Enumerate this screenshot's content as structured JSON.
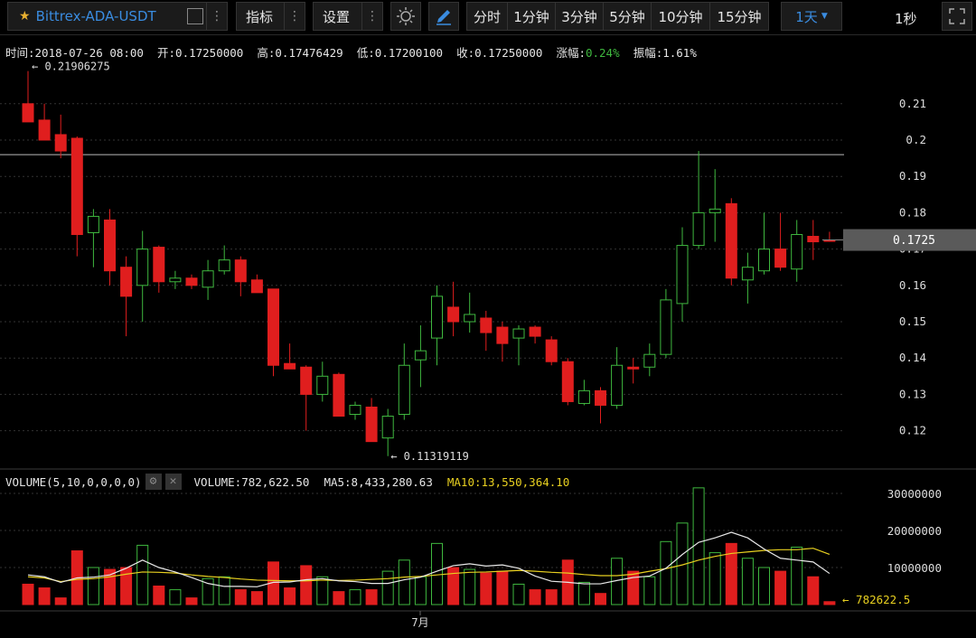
{
  "symbol": "Bittrex-ADA-USDT",
  "toolbar": {
    "indicators_label": "指标",
    "settings_label": "设置",
    "intervals": [
      "分时",
      "1分钟",
      "3分钟",
      "5分钟",
      "10分钟",
      "15分钟"
    ],
    "selected_interval": "1天",
    "refresh_label": "1秒"
  },
  "info": {
    "time_label": "时间:",
    "time": "2018-07-26 08:00",
    "open_label": "开:",
    "open": "0.17250000",
    "high_label": "高:",
    "high": "0.17476429",
    "low_label": "低:",
    "low": "0.17200100",
    "close_label": "收:",
    "close": "0.17250000",
    "change_label": "涨幅:",
    "change": "0.24%",
    "amplitude_label": "振幅:",
    "amplitude": "1.61%"
  },
  "volume_info": {
    "label": "VOLUME(5,10,0,0,0,0)",
    "volume": "VOLUME:782,622.50",
    "ma5": "MA5:8,433,280.63",
    "ma10": "MA10:13,550,364.10"
  },
  "colors": {
    "up": "#3fb83f",
    "down": "#e01e1e",
    "ma5": "#e8e8e8",
    "ma10": "#e8d020",
    "accent": "#3a8ce0",
    "change": "#3fb83f"
  },
  "chart_data": {
    "type": "candlestick",
    "price_ticks": [
      "0.21",
      "0.2",
      "0.19",
      "0.18",
      "0.17",
      "0.16",
      "0.15",
      "0.14",
      "0.13",
      "0.12"
    ],
    "price_axis_values": [
      0.21,
      0.2,
      0.19,
      0.18,
      0.17,
      0.16,
      0.15,
      0.14,
      0.13,
      0.12
    ],
    "current_price_label": "0.1725",
    "current_price": 0.1725,
    "horizontal_line_price": 0.196,
    "max_label": "0.21906275",
    "max_price": 0.21906275,
    "min_label": "0.11319119",
    "min_price": 0.11319119,
    "volume_ticks": [
      "30000000",
      "20000000",
      "10000000"
    ],
    "volume_axis_values": [
      30000000,
      20000000,
      10000000
    ],
    "last_volume_label": "782622.5",
    "x_label": "7月",
    "candles": [
      {
        "o": 0.21,
        "h": 0.219,
        "l": 0.205,
        "c": 0.205
      },
      {
        "o": 0.2055,
        "h": 0.21,
        "l": 0.2,
        "c": 0.2
      },
      {
        "o": 0.2015,
        "h": 0.207,
        "l": 0.195,
        "c": 0.197
      },
      {
        "o": 0.2005,
        "h": 0.201,
        "l": 0.168,
        "c": 0.174
      },
      {
        "o": 0.1745,
        "h": 0.181,
        "l": 0.165,
        "c": 0.179
      },
      {
        "o": 0.178,
        "h": 0.181,
        "l": 0.16,
        "c": 0.164
      },
      {
        "o": 0.165,
        "h": 0.168,
        "l": 0.146,
        "c": 0.157
      },
      {
        "o": 0.16,
        "h": 0.175,
        "l": 0.15,
        "c": 0.17
      },
      {
        "o": 0.1705,
        "h": 0.171,
        "l": 0.158,
        "c": 0.161
      },
      {
        "o": 0.161,
        "h": 0.164,
        "l": 0.159,
        "c": 0.162
      },
      {
        "o": 0.162,
        "h": 0.163,
        "l": 0.159,
        "c": 0.16
      },
      {
        "o": 0.1595,
        "h": 0.167,
        "l": 0.156,
        "c": 0.164
      },
      {
        "o": 0.164,
        "h": 0.171,
        "l": 0.163,
        "c": 0.167
      },
      {
        "o": 0.167,
        "h": 0.168,
        "l": 0.157,
        "c": 0.161
      },
      {
        "o": 0.1615,
        "h": 0.163,
        "l": 0.158,
        "c": 0.158
      },
      {
        "o": 0.159,
        "h": 0.159,
        "l": 0.135,
        "c": 0.138
      },
      {
        "o": 0.1385,
        "h": 0.144,
        "l": 0.137,
        "c": 0.137
      },
      {
        "o": 0.1375,
        "h": 0.138,
        "l": 0.12,
        "c": 0.13
      },
      {
        "o": 0.13,
        "h": 0.139,
        "l": 0.128,
        "c": 0.135
      },
      {
        "o": 0.1355,
        "h": 0.136,
        "l": 0.124,
        "c": 0.124
      },
      {
        "o": 0.1245,
        "h": 0.128,
        "l": 0.123,
        "c": 0.127
      },
      {
        "o": 0.1265,
        "h": 0.129,
        "l": 0.117,
        "c": 0.117
      },
      {
        "o": 0.118,
        "h": 0.126,
        "l": 0.113,
        "c": 0.124
      },
      {
        "o": 0.1245,
        "h": 0.144,
        "l": 0.123,
        "c": 0.138
      },
      {
        "o": 0.1395,
        "h": 0.149,
        "l": 0.132,
        "c": 0.142
      },
      {
        "o": 0.1455,
        "h": 0.16,
        "l": 0.138,
        "c": 0.157
      },
      {
        "o": 0.154,
        "h": 0.161,
        "l": 0.146,
        "c": 0.15
      },
      {
        "o": 0.15,
        "h": 0.158,
        "l": 0.147,
        "c": 0.152
      },
      {
        "o": 0.151,
        "h": 0.153,
        "l": 0.142,
        "c": 0.147
      },
      {
        "o": 0.1485,
        "h": 0.15,
        "l": 0.139,
        "c": 0.144
      },
      {
        "o": 0.1455,
        "h": 0.149,
        "l": 0.138,
        "c": 0.148
      },
      {
        "o": 0.1485,
        "h": 0.149,
        "l": 0.144,
        "c": 0.146
      },
      {
        "o": 0.145,
        "h": 0.146,
        "l": 0.138,
        "c": 0.139
      },
      {
        "o": 0.139,
        "h": 0.14,
        "l": 0.127,
        "c": 0.128
      },
      {
        "o": 0.1275,
        "h": 0.134,
        "l": 0.127,
        "c": 0.131
      },
      {
        "o": 0.131,
        "h": 0.132,
        "l": 0.122,
        "c": 0.127
      },
      {
        "o": 0.127,
        "h": 0.143,
        "l": 0.126,
        "c": 0.138
      },
      {
        "o": 0.1375,
        "h": 0.14,
        "l": 0.133,
        "c": 0.137
      },
      {
        "o": 0.1375,
        "h": 0.144,
        "l": 0.135,
        "c": 0.141
      },
      {
        "o": 0.141,
        "h": 0.159,
        "l": 0.14,
        "c": 0.156
      },
      {
        "o": 0.155,
        "h": 0.176,
        "l": 0.15,
        "c": 0.171
      },
      {
        "o": 0.171,
        "h": 0.197,
        "l": 0.17,
        "c": 0.18
      },
      {
        "o": 0.18,
        "h": 0.192,
        "l": 0.172,
        "c": 0.181
      },
      {
        "o": 0.1825,
        "h": 0.184,
        "l": 0.16,
        "c": 0.162
      },
      {
        "o": 0.1615,
        "h": 0.169,
        "l": 0.155,
        "c": 0.165
      },
      {
        "o": 0.164,
        "h": 0.18,
        "l": 0.163,
        "c": 0.17
      },
      {
        "o": 0.17,
        "h": 0.18,
        "l": 0.164,
        "c": 0.165
      },
      {
        "o": 0.1645,
        "h": 0.178,
        "l": 0.161,
        "c": 0.174
      },
      {
        "o": 0.1735,
        "h": 0.178,
        "l": 0.167,
        "c": 0.172
      },
      {
        "o": 0.1725,
        "h": 0.17476429,
        "l": 0.172001,
        "c": 0.1725
      }
    ],
    "volumes": [
      5500000,
      4500000,
      1800000,
      14500000,
      10000000,
      9500000,
      10000000,
      16000000,
      5000000,
      4000000,
      1800000,
      7000000,
      7500000,
      4000000,
      3500000,
      11500000,
      4500000,
      10500000,
      7500000,
      3500000,
      4000000,
      4000000,
      9000000,
      12000000,
      7500000,
      16500000,
      10000000,
      9500000,
      8500000,
      9000000,
      5500000,
      4000000,
      4000000,
      12000000,
      6000000,
      3000000,
      12500000,
      9000000,
      7500000,
      17000000,
      22000000,
      31500000,
      14000000,
      16500000,
      12500000,
      10000000,
      9000000,
      15500000,
      7500000,
      782622.5
    ],
    "ma5": [
      8000000,
      7500000,
      6000000,
      7200000,
      7400000,
      8000000,
      9800000,
      12000000,
      10000000,
      8800000,
      7300000,
      5700000,
      4900000,
      4900000,
      4800000,
      6000000,
      6100000,
      6700000,
      7000000,
      6400000,
      6200000,
      5700000,
      5700000,
      6700000,
      7400000,
      9000000,
      10500000,
      11000000,
      10400000,
      10700000,
      9800000,
      7700000,
      6300000,
      6000000,
      5600000,
      5600000,
      6500000,
      7300000,
      7700000,
      9800000,
      13500000,
      16800000,
      18000000,
      19500000,
      18000000,
      15000000,
      12500000,
      12000000,
      11500000,
      8400000
    ],
    "ma10": [
      7500000,
      7200000,
      6200000,
      6800000,
      7000000,
      7500000,
      8200000,
      8800000,
      8700000,
      8500000,
      8000000,
      7600000,
      7300000,
      6900000,
      6600000,
      6500000,
      6400000,
      6400000,
      6600000,
      6500000,
      6600000,
      6800000,
      7000000,
      7400000,
      7600000,
      8000000,
      8400000,
      8700000,
      8800000,
      9000000,
      9200000,
      9000000,
      8700000,
      8500000,
      8100000,
      7800000,
      7800000,
      8200000,
      9000000,
      9700000,
      10700000,
      12000000,
      13000000,
      13800000,
      14200000,
      14600000,
      14800000,
      14800000,
      15200000,
      13550364
    ]
  }
}
